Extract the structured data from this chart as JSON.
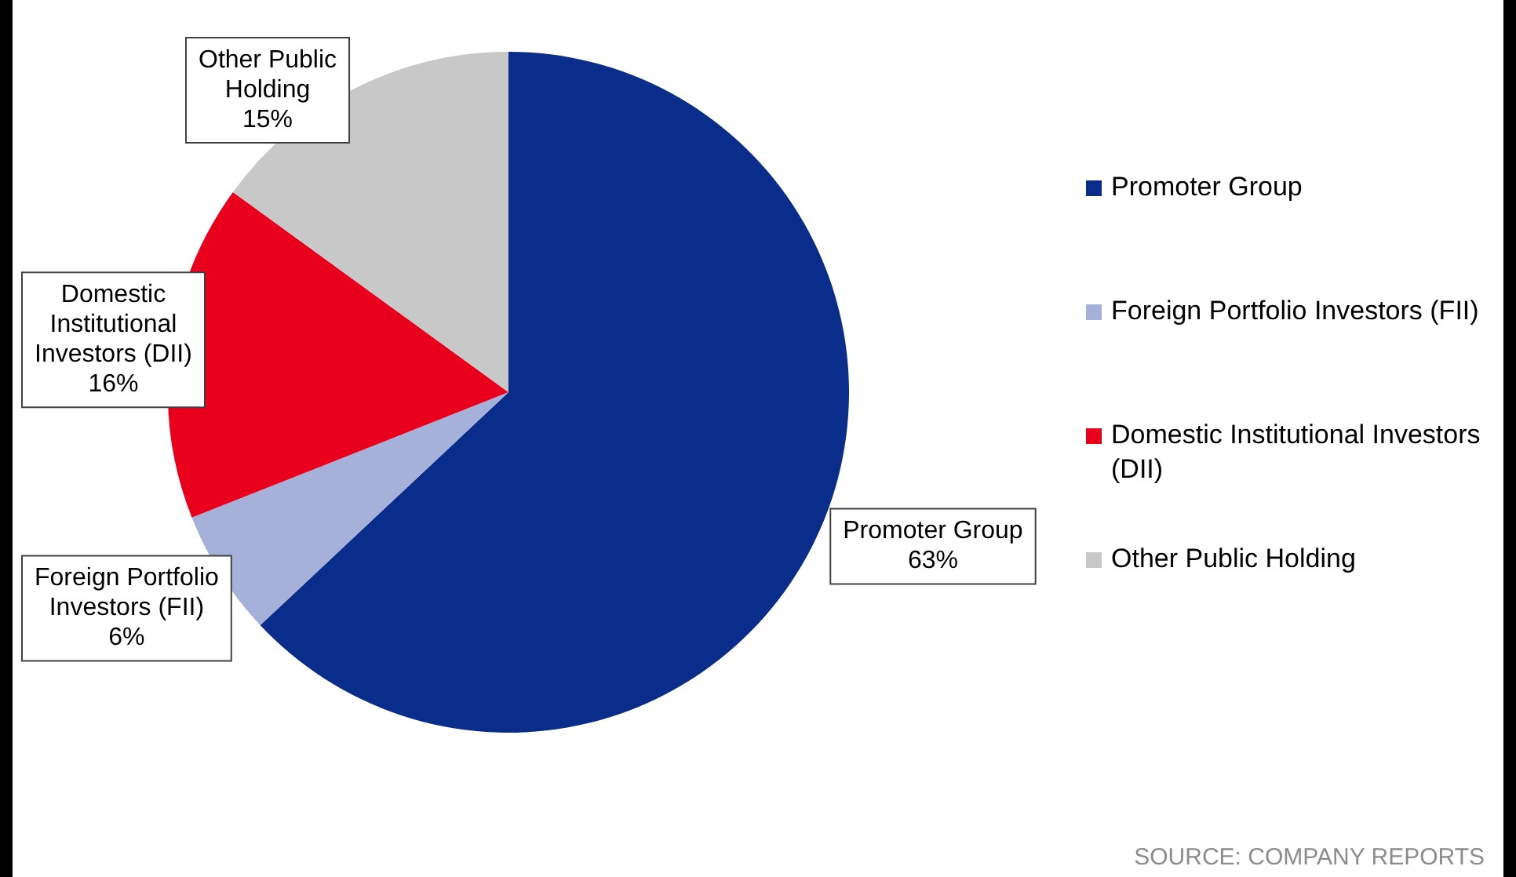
{
  "chart_data": {
    "type": "pie",
    "categories": [
      "Promoter Group",
      "Foreign Portfolio Investors (FII)",
      "Domestic Institutional Investors (DII)",
      "Other Public Holding"
    ],
    "values": [
      63,
      6,
      16,
      15
    ],
    "value_labels": [
      "63%",
      "6%",
      "16%",
      "15%"
    ],
    "colors": [
      "#0a2d8c",
      "#a5b1d9",
      "#e8001c",
      "#c8c8c8"
    ],
    "legend": "right",
    "annotations": [
      "SOURCE: COMPANY REPORTS"
    ]
  }
}
